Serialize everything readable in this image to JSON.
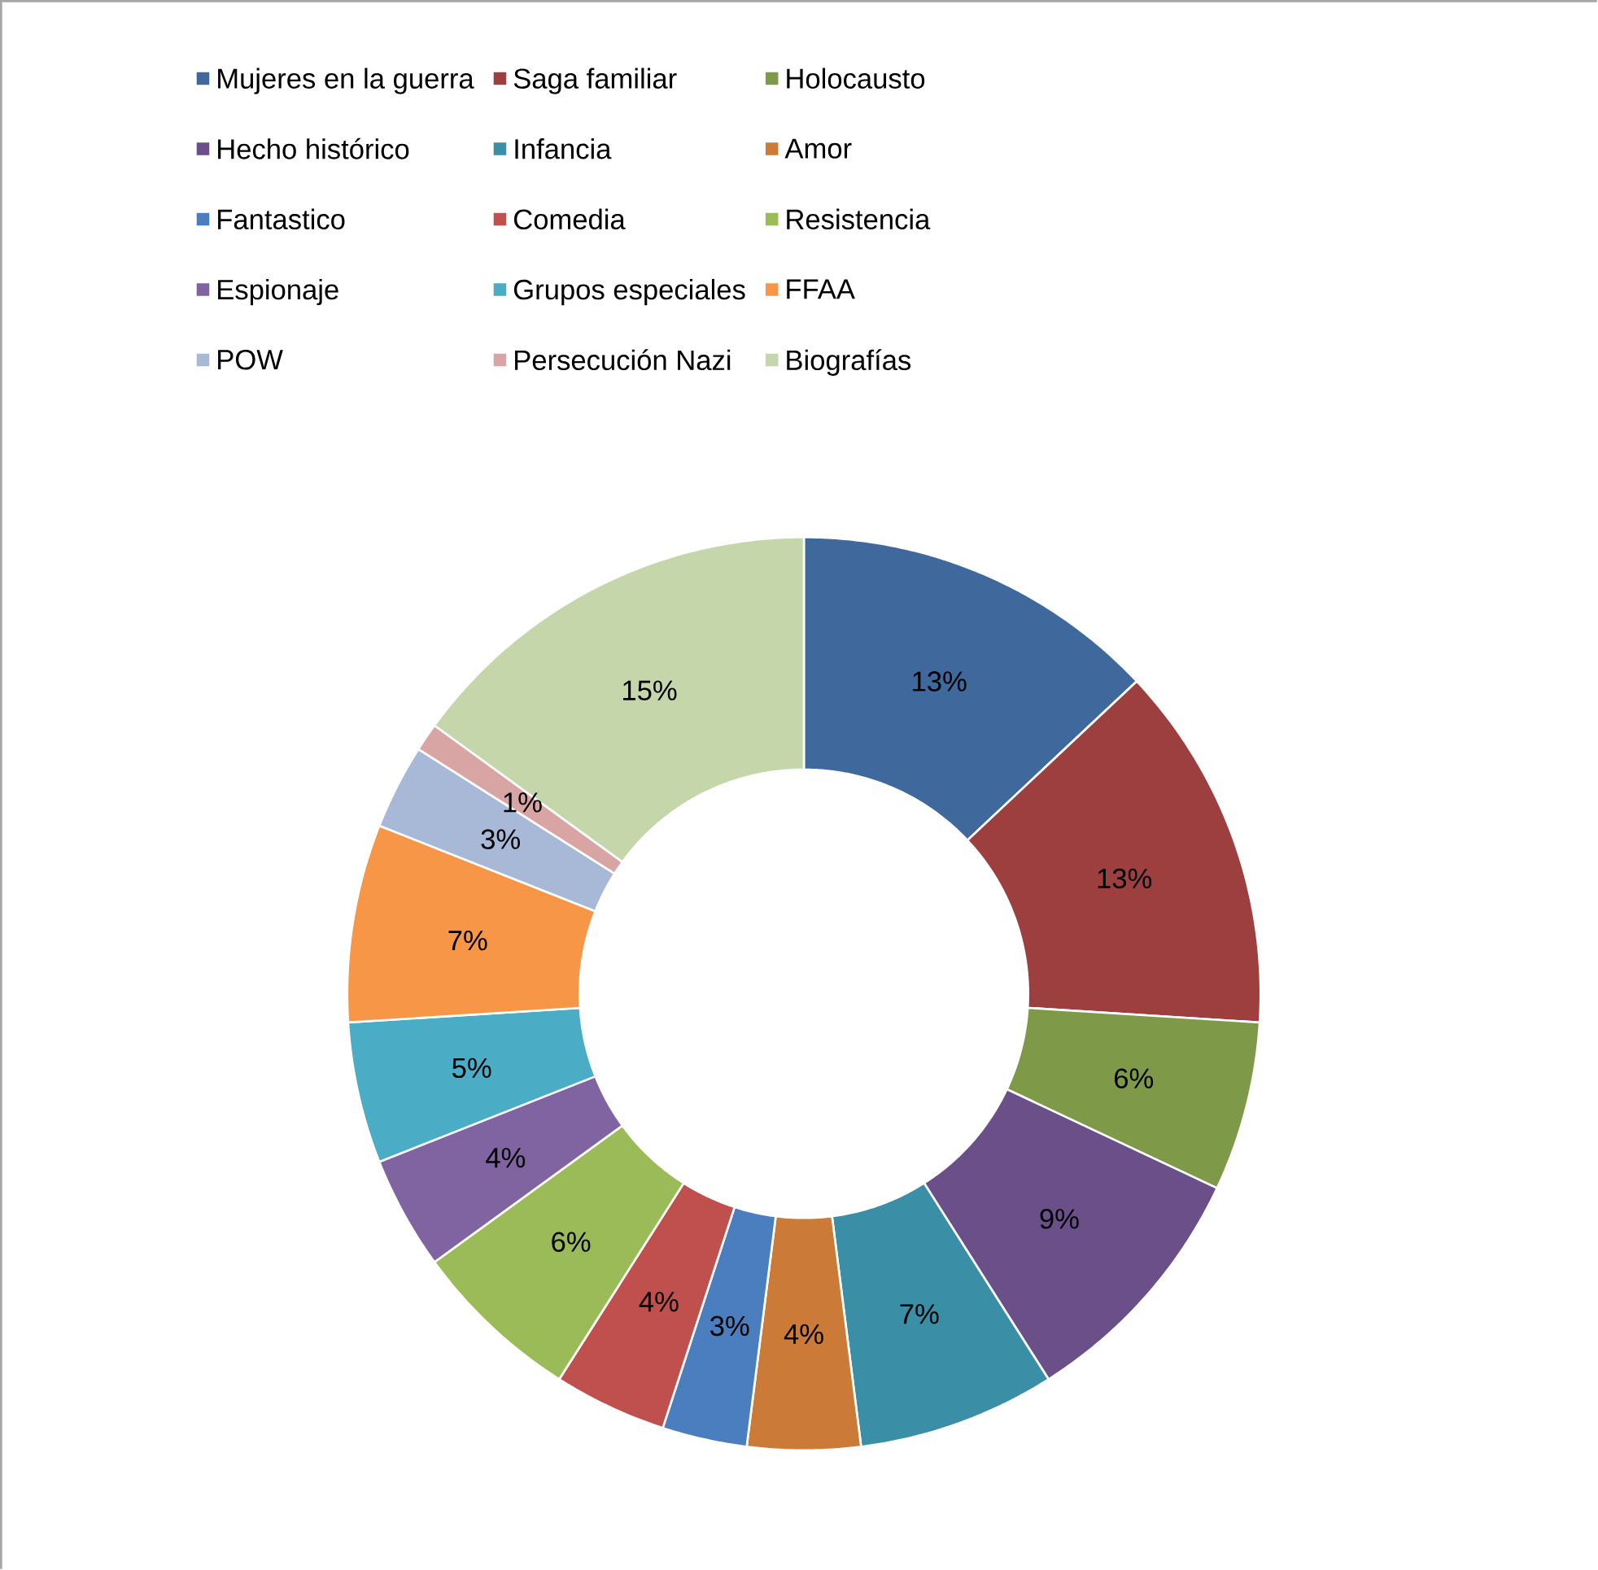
{
  "chart_data": {
    "type": "donut",
    "categories": [
      "Mujeres en la guerra",
      "Saga familiar",
      "Holocausto",
      "Hecho histórico",
      "Infancia",
      "Amor",
      "Fantastico",
      "Comedia",
      "Resistencia",
      "Espionaje",
      "Grupos especiales",
      "FFAA",
      "POW",
      "Persecución Nazi",
      "Biografías"
    ],
    "values": [
      13,
      13,
      6,
      9,
      7,
      4,
      3,
      4,
      6,
      4,
      5,
      7,
      3,
      1,
      15
    ],
    "value_labels": [
      "13%",
      "13%",
      "6%",
      "9%",
      "7%",
      "4%",
      "3%",
      "4%",
      "6%",
      "4%",
      "5%",
      "7%",
      "3%",
      "1%",
      "15%"
    ],
    "colors": [
      "#3f699c",
      "#9c3f3e",
      "#7e9a48",
      "#6a4f88",
      "#3a8ea5",
      "#cc7a37",
      "#4a7ebe",
      "#c0504d",
      "#9bbb59",
      "#8064a2",
      "#4bacc6",
      "#f79646",
      "#a8b9d8",
      "#d9a5a4",
      "#c4d6aa"
    ],
    "legend": "top"
  }
}
